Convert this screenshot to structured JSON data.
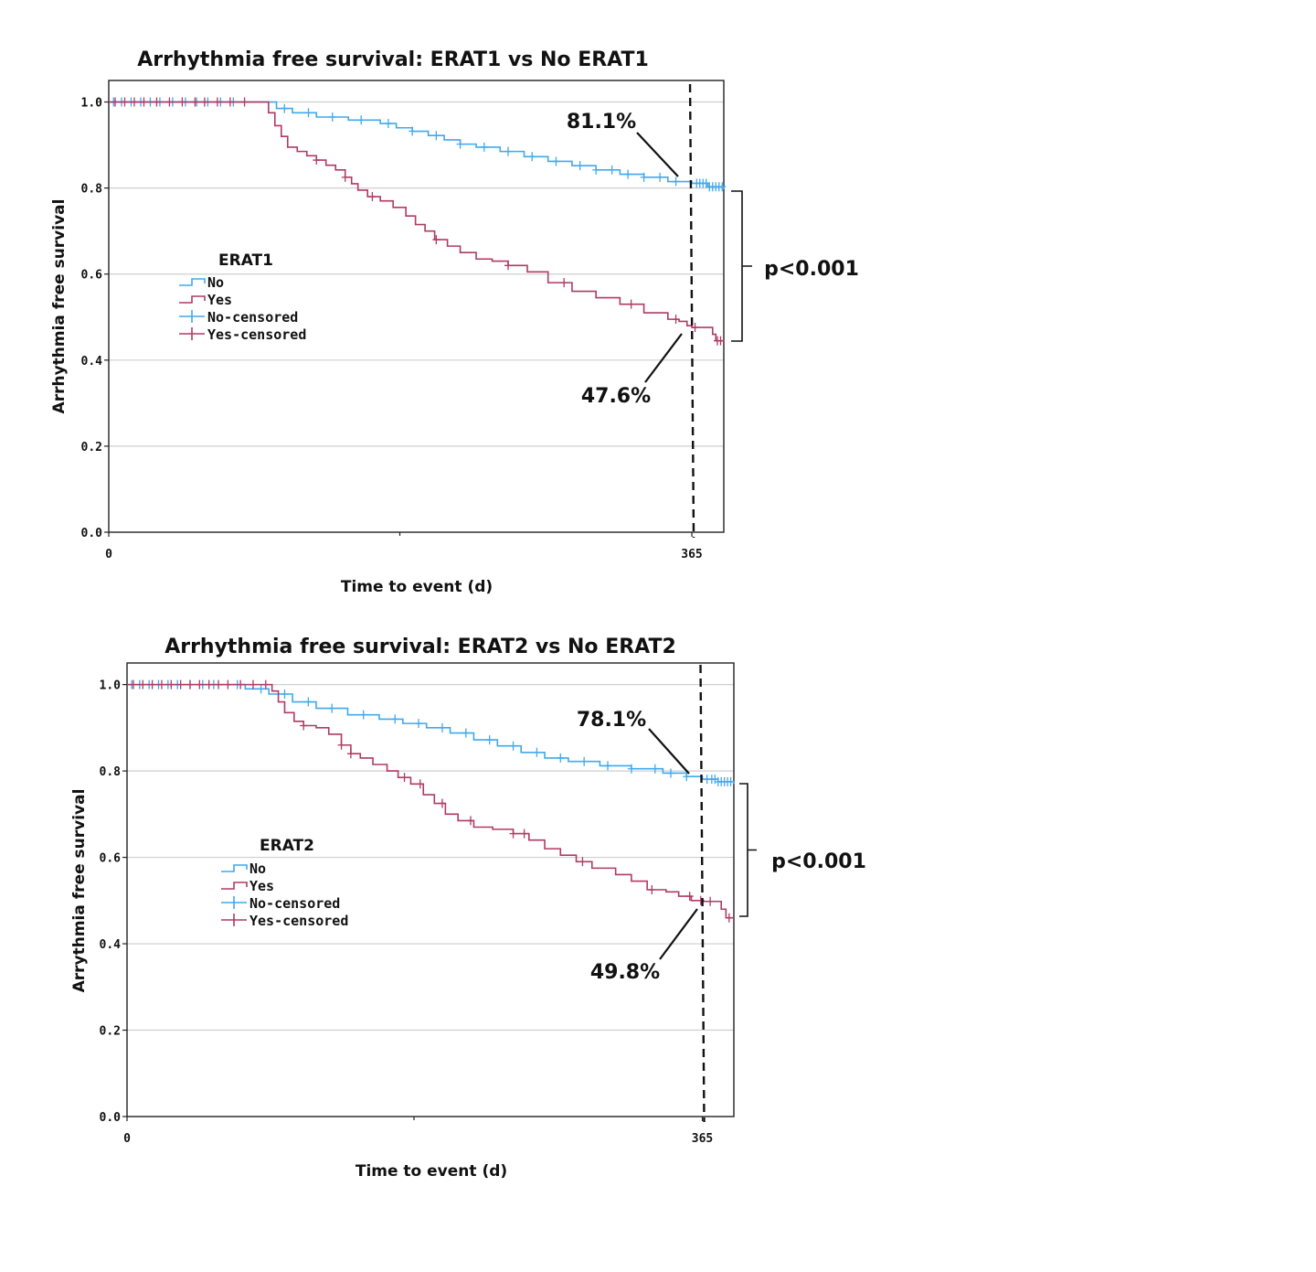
{
  "chart_data": [
    {
      "type": "line",
      "title": "Arrhythmia free survival: ERAT1 vs No ERAT1",
      "xlabel": "Time to event (d)",
      "ylabel": "Arrhythmia free survival",
      "x_ticks": [
        "0",
        "365"
      ],
      "y_ticks": [
        "0.0",
        "0.2",
        "0.4",
        "0.6",
        "0.8",
        "1.0"
      ],
      "xlim": [
        0,
        385
      ],
      "ylim": [
        0,
        1.05
      ],
      "grid": "horizontal",
      "legend_title": "ERAT1",
      "legend_position": "center-left",
      "legend": [
        "No",
        "Yes",
        "No-censored",
        "Yes-censored"
      ],
      "series": [
        {
          "name": "No",
          "color": "#3fa9ef",
          "points": [
            [
              0,
              1.0
            ],
            [
              95,
              1.0
            ],
            [
              105,
              0.985
            ],
            [
              115,
              0.975
            ],
            [
              130,
              0.965
            ],
            [
              150,
              0.958
            ],
            [
              170,
              0.95
            ],
            [
              180,
              0.94
            ],
            [
              190,
              0.932
            ],
            [
              200,
              0.922
            ],
            [
              210,
              0.912
            ],
            [
              220,
              0.902
            ],
            [
              230,
              0.895
            ],
            [
              245,
              0.885
            ],
            [
              260,
              0.873
            ],
            [
              275,
              0.862
            ],
            [
              290,
              0.852
            ],
            [
              305,
              0.842
            ],
            [
              320,
              0.832
            ],
            [
              335,
              0.825
            ],
            [
              350,
              0.815
            ],
            [
              365,
              0.811
            ],
            [
              375,
              0.803
            ],
            [
              385,
              0.797
            ]
          ],
          "censored_x": [
            3,
            8,
            14,
            20,
            26,
            32,
            40,
            48,
            55,
            62,
            70,
            78,
            110,
            125,
            140,
            158,
            175,
            190,
            205,
            220,
            235,
            250,
            265,
            280,
            295,
            305,
            315,
            325,
            335,
            345,
            355,
            368,
            370,
            372,
            374,
            376,
            378,
            380,
            382,
            384
          ]
        },
        {
          "name": "Yes",
          "color": "#b03a63",
          "points": [
            [
              0,
              1.0
            ],
            [
              95,
              1.0
            ],
            [
              100,
              0.975
            ],
            [
              104,
              0.945
            ],
            [
              108,
              0.92
            ],
            [
              112,
              0.895
            ],
            [
              118,
              0.885
            ],
            [
              124,
              0.875
            ],
            [
              130,
              0.865
            ],
            [
              136,
              0.853
            ],
            [
              142,
              0.842
            ],
            [
              148,
              0.825
            ],
            [
              152,
              0.81
            ],
            [
              156,
              0.795
            ],
            [
              162,
              0.78
            ],
            [
              170,
              0.77
            ],
            [
              178,
              0.755
            ],
            [
              186,
              0.735
            ],
            [
              192,
              0.715
            ],
            [
              198,
              0.7
            ],
            [
              204,
              0.68
            ],
            [
              212,
              0.665
            ],
            [
              220,
              0.65
            ],
            [
              230,
              0.635
            ],
            [
              240,
              0.63
            ],
            [
              250,
              0.62
            ],
            [
              262,
              0.605
            ],
            [
              275,
              0.58
            ],
            [
              290,
              0.56
            ],
            [
              305,
              0.545
            ],
            [
              320,
              0.53
            ],
            [
              335,
              0.51
            ],
            [
              350,
              0.495
            ],
            [
              357,
              0.49
            ],
            [
              362,
              0.48
            ],
            [
              365,
              0.476
            ],
            [
              374,
              0.476
            ],
            [
              378,
              0.46
            ],
            [
              380,
              0.445
            ],
            [
              385,
              0.445
            ]
          ],
          "censored_x": [
            4,
            10,
            16,
            22,
            30,
            38,
            46,
            54,
            60,
            68,
            76,
            85,
            130,
            148,
            165,
            205,
            250,
            285,
            327,
            355,
            367,
            381,
            383
          ]
        }
      ],
      "reference_x": 365,
      "annotations": [
        {
          "text": "81.1%",
          "series": "No",
          "x": 365,
          "y": 0.811
        },
        {
          "text": "47.6%",
          "series": "Yes",
          "x": 365,
          "y": 0.476
        },
        {
          "text": "p<0.001"
        }
      ]
    },
    {
      "type": "line",
      "title": "Arrhythmia free survival: ERAT2 vs No ERAT2",
      "xlabel": "Time to event (d)",
      "ylabel": "Arrythmia free survival",
      "x_ticks": [
        "0",
        "365"
      ],
      "y_ticks": [
        "0.0",
        "0.2",
        "0.4",
        "0.6",
        "0.8",
        "1.0"
      ],
      "xlim": [
        0,
        385
      ],
      "ylim": [
        0,
        1.05
      ],
      "grid": "horizontal",
      "legend_title": "ERAT2",
      "legend_position": "center-left",
      "legend": [
        "No",
        "Yes",
        "No-censored",
        "Yes-censored"
      ],
      "series": [
        {
          "name": "No",
          "color": "#3fa9ef",
          "points": [
            [
              0,
              1.0
            ],
            [
              60,
              1.0
            ],
            [
              75,
              0.99
            ],
            [
              90,
              0.978
            ],
            [
              105,
              0.96
            ],
            [
              120,
              0.945
            ],
            [
              140,
              0.93
            ],
            [
              160,
              0.92
            ],
            [
              175,
              0.91
            ],
            [
              190,
              0.9
            ],
            [
              205,
              0.888
            ],
            [
              220,
              0.872
            ],
            [
              235,
              0.858
            ],
            [
              250,
              0.843
            ],
            [
              265,
              0.83
            ],
            [
              280,
              0.822
            ],
            [
              300,
              0.812
            ],
            [
              320,
              0.805
            ],
            [
              340,
              0.795
            ],
            [
              355,
              0.787
            ],
            [
              365,
              0.781
            ],
            [
              375,
              0.775
            ],
            [
              385,
              0.77
            ]
          ],
          "censored_x": [
            3,
            8,
            14,
            20,
            26,
            32,
            40,
            48,
            55,
            70,
            85,
            100,
            115,
            130,
            150,
            170,
            185,
            200,
            215,
            230,
            245,
            260,
            275,
            290,
            305,
            320,
            335,
            345,
            355,
            368,
            371,
            373,
            375,
            377,
            379,
            381,
            383
          ]
        },
        {
          "name": "Yes",
          "color": "#b03a63",
          "points": [
            [
              0,
              1.0
            ],
            [
              88,
              1.0
            ],
            [
              92,
              0.985
            ],
            [
              96,
              0.96
            ],
            [
              100,
              0.935
            ],
            [
              106,
              0.915
            ],
            [
              112,
              0.905
            ],
            [
              120,
              0.9
            ],
            [
              128,
              0.885
            ],
            [
              136,
              0.86
            ],
            [
              142,
              0.84
            ],
            [
              148,
              0.83
            ],
            [
              156,
              0.815
            ],
            [
              165,
              0.8
            ],
            [
              172,
              0.785
            ],
            [
              180,
              0.77
            ],
            [
              188,
              0.745
            ],
            [
              195,
              0.725
            ],
            [
              202,
              0.7
            ],
            [
              210,
              0.685
            ],
            [
              220,
              0.67
            ],
            [
              232,
              0.665
            ],
            [
              245,
              0.655
            ],
            [
              255,
              0.64
            ],
            [
              265,
              0.62
            ],
            [
              275,
              0.605
            ],
            [
              285,
              0.59
            ],
            [
              295,
              0.575
            ],
            [
              310,
              0.56
            ],
            [
              320,
              0.545
            ],
            [
              330,
              0.525
            ],
            [
              342,
              0.52
            ],
            [
              350,
              0.51
            ],
            [
              358,
              0.5
            ],
            [
              365,
              0.498
            ],
            [
              374,
              0.498
            ],
            [
              377,
              0.48
            ],
            [
              380,
              0.46
            ],
            [
              385,
              0.46
            ]
          ],
          "censored_x": [
            4,
            10,
            16,
            22,
            28,
            34,
            40,
            46,
            52,
            58,
            64,
            72,
            80,
            88,
            112,
            136,
            142,
            176,
            186,
            200,
            218,
            245,
            252,
            289,
            333,
            357,
            364,
            370,
            382
          ]
        }
      ],
      "reference_x": 365,
      "annotations": [
        {
          "text": "78.1%",
          "series": "No",
          "x": 365,
          "y": 0.781
        },
        {
          "text": "49.8%",
          "series": "Yes",
          "x": 365,
          "y": 0.498
        },
        {
          "text": "p<0.001"
        }
      ]
    }
  ]
}
